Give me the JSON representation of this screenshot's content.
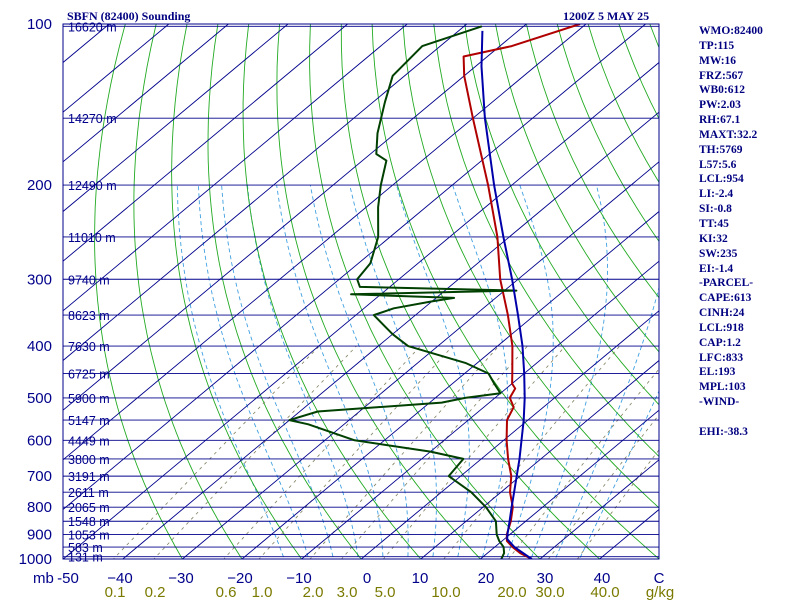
{
  "header": {
    "station": "SBFN (82400) Sounding",
    "time": "1200Z  5 MAY 25"
  },
  "indices": [
    "WMO:82400",
    "TP:115",
    "MW:16",
    "FRZ:567",
    "WB0:612",
    "PW:2.03",
    "RH:67.1",
    "MAXT:32.2",
    "TH:5769",
    "L57:5.6",
    "LCL:954",
    "LI:-2.4",
    "SI:-0.8",
    "TT:45",
    "KI:32",
    "SW:235",
    "EI:-1.4",
    "-PARCEL-",
    "CAPE:613",
    "CINH:24",
    "LCL:918",
    "CAP:1.2",
    "LFC:833",
    "EL:193",
    "MPL:103",
    "-WIND-",
    "",
    "EHI:-38.3"
  ],
  "colors": {
    "isobar": "#00008b",
    "frame": "#00008b",
    "dry_adiabat": "#22aa22",
    "moist_adiabat": "#40a0e0",
    "mixing_ratio": "#808060",
    "temperature": "#b00000",
    "dewpoint": "#004000",
    "parcel": "#0000aa",
    "temp_axis_label": "#00008b",
    "mixing_axis_label": "#7a7a00"
  },
  "chart_data": {
    "type": "line",
    "title": "SBFN (82400) Sounding",
    "diagram": "Skew-T log-P",
    "pressure_label": "mb",
    "pressure_range": [
      1000,
      100
    ],
    "pressure_ticks": [
      100,
      200,
      300,
      400,
      500,
      600,
      700,
      800,
      900,
      1000
    ],
    "temperature_range": [
      -50,
      50
    ],
    "temperature_ticks": [
      -50,
      -40,
      -30,
      -20,
      -10,
      0,
      10,
      20,
      30,
      40,
      50
    ],
    "temperature_tick_labels": [
      "-50",
      "−40",
      "−30",
      "−20",
      "−10",
      "0",
      "10",
      "20",
      "30",
      "40",
      "C"
    ],
    "mixing_ratio_label": "g/kg",
    "mixing_ratio_ticks": [
      "0.1",
      "0.2",
      "0.6",
      "1.0",
      "2.0",
      "3.0",
      "5.0",
      "10.0",
      "20.0",
      "30.0",
      "40.0"
    ],
    "heights": [
      {
        "p": 101,
        "label": "16620 m"
      },
      {
        "p": 150,
        "label": "14270 m"
      },
      {
        "p": 200,
        "label": "12490 m"
      },
      {
        "p": 250,
        "label": "11010 m"
      },
      {
        "p": 300,
        "label": "9740 m"
      },
      {
        "p": 350,
        "label": "8623 m"
      },
      {
        "p": 400,
        "label": "7630 m"
      },
      {
        "p": 450,
        "label": "6725 m"
      },
      {
        "p": 500,
        "label": "5900 m"
      },
      {
        "p": 550,
        "label": "5147 m"
      },
      {
        "p": 600,
        "label": "4449 m"
      },
      {
        "p": 650,
        "label": "3800 m"
      },
      {
        "p": 700,
        "label": "3191 m"
      },
      {
        "p": 750,
        "label": "2611 m"
      },
      {
        "p": 800,
        "label": "2065 m"
      },
      {
        "p": 850,
        "label": "1548 m"
      },
      {
        "p": 900,
        "label": "1053 m"
      },
      {
        "p": 950,
        "label": "583 m"
      },
      {
        "p": 990,
        "label": "131 m"
      }
    ],
    "series": [
      {
        "key": "temperature",
        "points": [
          {
            "p": 1000,
            "t": 28.6
          },
          {
            "p": 975,
            "t": 25.5
          },
          {
            "p": 950,
            "t": 23.0
          },
          {
            "p": 925,
            "t": 20.8
          },
          {
            "p": 900,
            "t": 19.5
          },
          {
            "p": 850,
            "t": 17.5
          },
          {
            "p": 800,
            "t": 15.0
          },
          {
            "p": 750,
            "t": 11.5
          },
          {
            "p": 700,
            "t": 8.5
          },
          {
            "p": 650,
            "t": 4.5
          },
          {
            "p": 600,
            "t": 0.5
          },
          {
            "p": 550,
            "t": -3.5
          },
          {
            "p": 520,
            "t": -5.0
          },
          {
            "p": 500,
            "t": -7.5
          },
          {
            "p": 480,
            "t": -8.5
          },
          {
            "p": 470,
            "t": -10.0
          },
          {
            "p": 450,
            "t": -12.0
          },
          {
            "p": 400,
            "t": -17.5
          },
          {
            "p": 350,
            "t": -24.5
          },
          {
            "p": 300,
            "t": -33.0
          },
          {
            "p": 250,
            "t": -42.0
          },
          {
            "p": 200,
            "t": -54.0
          },
          {
            "p": 150,
            "t": -70.0
          },
          {
            "p": 125,
            "t": -80.0
          },
          {
            "p": 115,
            "t": -84.0
          },
          {
            "p": 110,
            "t": -78.0
          },
          {
            "p": 100,
            "t": -71.0
          }
        ]
      },
      {
        "key": "dewpoint",
        "points": [
          {
            "p": 1000,
            "t": 23.5
          },
          {
            "p": 975,
            "t": 22.8
          },
          {
            "p": 950,
            "t": 21.5
          },
          {
            "p": 925,
            "t": 19.5
          },
          {
            "p": 900,
            "t": 17.8
          },
          {
            "p": 850,
            "t": 15.0
          },
          {
            "p": 800,
            "t": 10.5
          },
          {
            "p": 750,
            "t": 5.0
          },
          {
            "p": 700,
            "t": -2.0
          },
          {
            "p": 650,
            "t": -3.0
          },
          {
            "p": 630,
            "t": -10.0
          },
          {
            "p": 600,
            "t": -25.0
          },
          {
            "p": 560,
            "t": -36.0
          },
          {
            "p": 550,
            "t": -40.0
          },
          {
            "p": 530,
            "t": -37.0
          },
          {
            "p": 510,
            "t": -18.0
          },
          {
            "p": 500,
            "t": -15.0
          },
          {
            "p": 490,
            "t": -10.0
          },
          {
            "p": 470,
            "t": -13.0
          },
          {
            "p": 450,
            "t": -16.0
          },
          {
            "p": 430,
            "t": -22.0
          },
          {
            "p": 400,
            "t": -35.0
          },
          {
            "p": 380,
            "t": -40.0
          },
          {
            "p": 350,
            "t": -47.0
          },
          {
            "p": 340,
            "t": -45.0
          },
          {
            "p": 330,
            "t": -40.0
          },
          {
            "p": 325,
            "t": -37.0
          },
          {
            "p": 320,
            "t": -55.0
          },
          {
            "p": 315,
            "t": -28.0
          },
          {
            "p": 310,
            "t": -55.0
          },
          {
            "p": 300,
            "t": -57.0
          },
          {
            "p": 280,
            "t": -58.0
          },
          {
            "p": 250,
            "t": -62.0
          },
          {
            "p": 220,
            "t": -68.0
          },
          {
            "p": 200,
            "t": -72.0
          },
          {
            "p": 180,
            "t": -76.0
          },
          {
            "p": 175,
            "t": -79.0
          },
          {
            "p": 160,
            "t": -83.0
          },
          {
            "p": 140,
            "t": -88.0
          },
          {
            "p": 125,
            "t": -92.0
          },
          {
            "p": 110,
            "t": -93.0
          },
          {
            "p": 101,
            "t": -87.0
          }
        ]
      },
      {
        "key": "parcel",
        "points": [
          {
            "p": 1000,
            "t": 28.6
          },
          {
            "p": 950,
            "t": 23.3
          },
          {
            "p": 918,
            "t": 20.5
          },
          {
            "p": 900,
            "t": 19.6
          },
          {
            "p": 850,
            "t": 17.3
          },
          {
            "p": 800,
            "t": 14.8
          },
          {
            "p": 750,
            "t": 12.2
          },
          {
            "p": 700,
            "t": 9.4
          },
          {
            "p": 650,
            "t": 6.4
          },
          {
            "p": 600,
            "t": 3.0
          },
          {
            "p": 550,
            "t": -0.7
          },
          {
            "p": 500,
            "t": -5.0
          },
          {
            "p": 450,
            "t": -10.0
          },
          {
            "p": 400,
            "t": -15.8
          },
          {
            "p": 350,
            "t": -22.8
          },
          {
            "p": 300,
            "t": -31.0
          },
          {
            "p": 250,
            "t": -41.0
          },
          {
            "p": 200,
            "t": -53.0
          },
          {
            "p": 150,
            "t": -68.0
          },
          {
            "p": 120,
            "t": -79.0
          },
          {
            "p": 103,
            "t": -86.0
          }
        ]
      }
    ]
  }
}
